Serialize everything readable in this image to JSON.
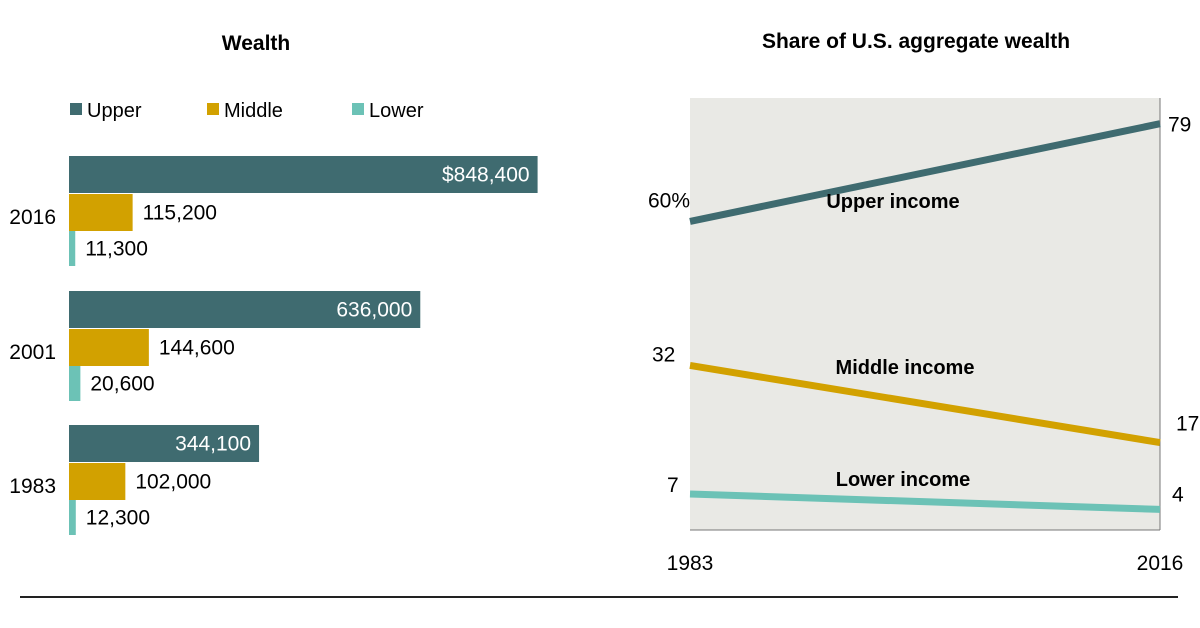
{
  "colors": {
    "upper": "#3f6b70",
    "middle": "#d2a100",
    "lower": "#6cc2b6",
    "panel_bg": "#e9e9e5",
    "axis": "#777777",
    "rule": "#222222"
  },
  "chart_data": [
    {
      "type": "bar",
      "orientation": "horizontal",
      "title": "Wealth",
      "legend": [
        "Upper",
        "Middle",
        "Lower"
      ],
      "legend_position": "top-left",
      "categories": [
        "2016",
        "2001",
        "1983"
      ],
      "series": [
        {
          "name": "Upper",
          "values": [
            848400,
            636000,
            344100
          ],
          "labels": [
            "$848,400",
            "636,000",
            "344,100"
          ]
        },
        {
          "name": "Middle",
          "values": [
            115200,
            144600,
            102000
          ],
          "labels": [
            "115,200",
            "144,600",
            "102,000"
          ]
        },
        {
          "name": "Lower",
          "values": [
            11300,
            20600,
            12300
          ],
          "labels": [
            "11,300",
            "20,600",
            "12,300"
          ]
        }
      ],
      "xlim": [
        0,
        860000
      ]
    },
    {
      "type": "line",
      "title": "Share of U.S. aggregate wealth",
      "x": [
        "1983",
        "2016"
      ],
      "ylim": [
        0,
        84
      ],
      "series": [
        {
          "name": "Upper income",
          "values": [
            60,
            79
          ],
          "start_label": "60%",
          "end_label": "79"
        },
        {
          "name": "Middle income",
          "values": [
            32,
            17
          ],
          "start_label": "32",
          "end_label": "17"
        },
        {
          "name": "Lower income",
          "values": [
            7,
            4
          ],
          "start_label": "7",
          "end_label": "4"
        }
      ]
    }
  ]
}
